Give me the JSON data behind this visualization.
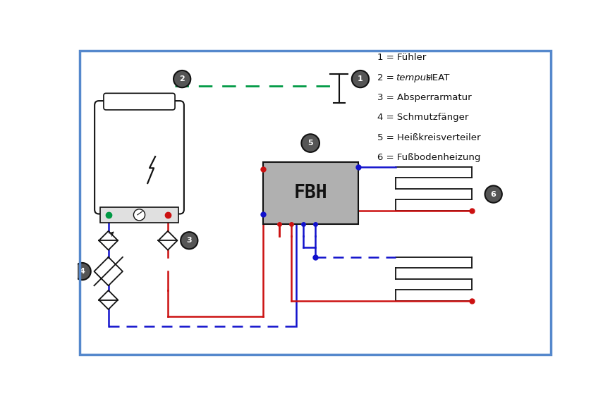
{
  "bg_color": "#ffffff",
  "border_color": "#5588cc",
  "red": "#cc1111",
  "blue": "#1111cc",
  "green": "#009944",
  "dark": "#111111",
  "panel_gray": "#e0e0e0",
  "fbh_gray": "#b0b0b0",
  "circ_fill": "#555555",
  "lw": 1.8,
  "legend": [
    "1 = Fühler",
    "2 = tempusHEAT",
    "3 = Absperrarmatur",
    "4 = Schmutzfänger",
    "5 = Heißkreisverteiler",
    "6 = Fußbodenheizung"
  ]
}
